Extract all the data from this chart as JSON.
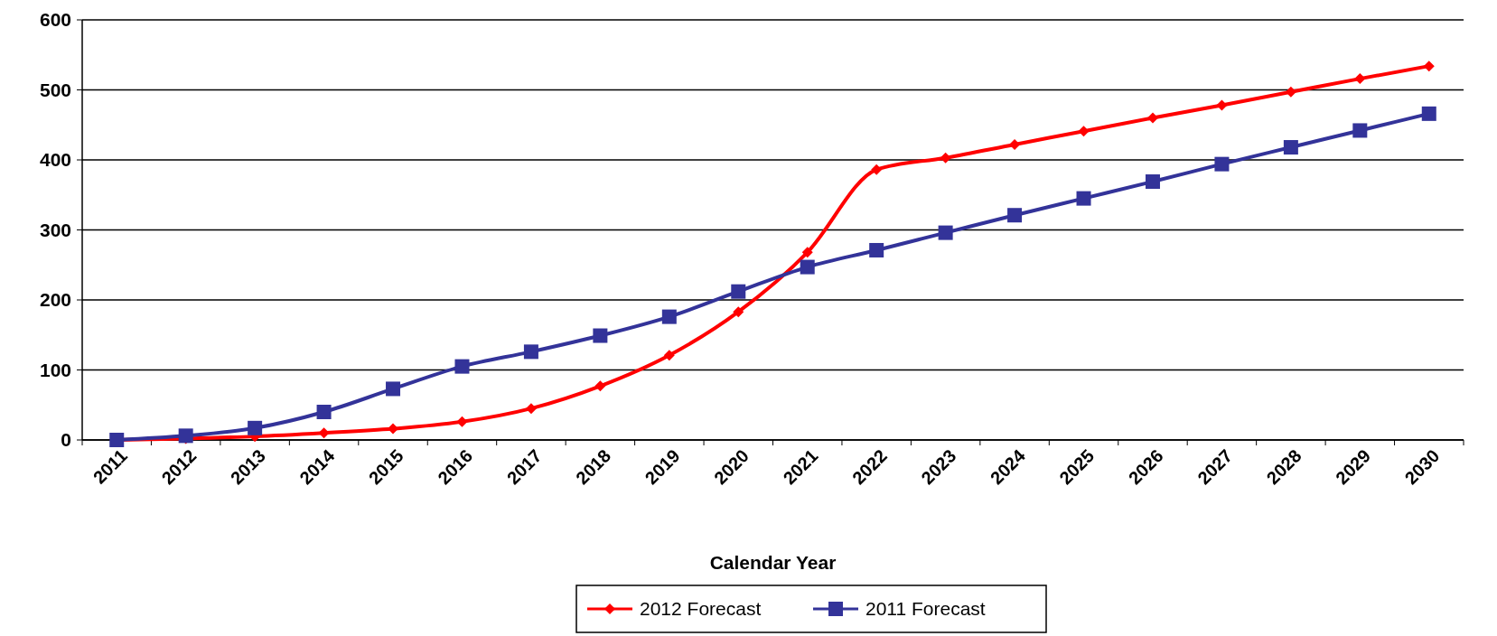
{
  "chart_data": {
    "type": "line",
    "xlabel": "Calendar Year",
    "categories": [
      "2011",
      "2012",
      "2013",
      "2014",
      "2015",
      "2016",
      "2017",
      "2018",
      "2019",
      "2020",
      "2021",
      "2022",
      "2023",
      "2024",
      "2025",
      "2026",
      "2027",
      "2028",
      "2029",
      "2030"
    ],
    "series": [
      {
        "name": "2012 Forecast",
        "color": "#ff0000",
        "marker": "diamond",
        "values": [
          0,
          2,
          5,
          10,
          16,
          26,
          45,
          77,
          121,
          183,
          268,
          386,
          403,
          422,
          441,
          460,
          478,
          497,
          516,
          534
        ]
      },
      {
        "name": "2011 Forecast",
        "color": "#333399",
        "marker": "square",
        "values": [
          0,
          6,
          17,
          40,
          73,
          105,
          126,
          149,
          176,
          212,
          247,
          271,
          296,
          321,
          345,
          369,
          394,
          418,
          442,
          466
        ]
      }
    ],
    "ylim": [
      0,
      600
    ],
    "yticks": [
      0,
      100,
      200,
      300,
      400,
      500,
      600
    ],
    "grid": "y",
    "legend": "bottom"
  }
}
